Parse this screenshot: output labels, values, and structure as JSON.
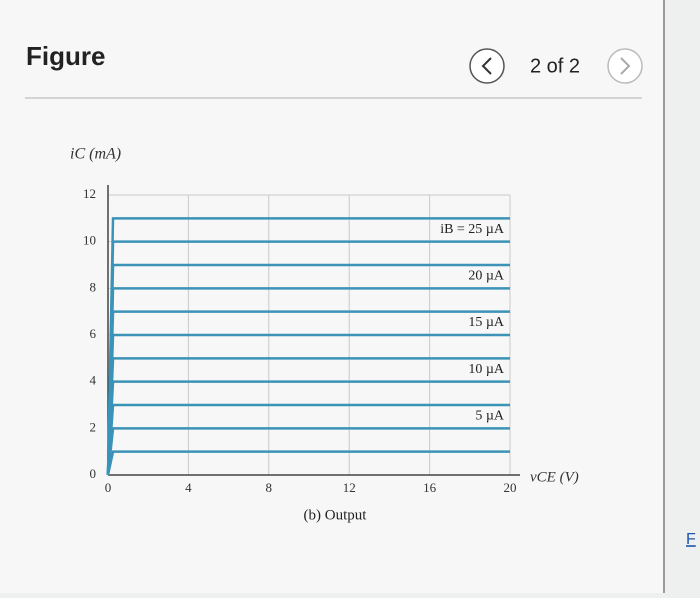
{
  "header": {
    "title": "Figure",
    "pager": "2 of 2"
  },
  "link": "F",
  "chart_data": {
    "type": "line",
    "y_label": "iC (mA)",
    "x_label": "vCE (V)",
    "caption": "(b) Output",
    "x": [
      0,
      0.25,
      20
    ],
    "color": "#3b93b8",
    "series": [
      {
        "values": [
          0,
          1,
          1
        ]
      },
      {
        "name": "5 µA",
        "values": [
          0,
          2,
          2
        ]
      },
      {
        "values": [
          0,
          3,
          3
        ]
      },
      {
        "name": "10 µA",
        "values": [
          0,
          4,
          4
        ]
      },
      {
        "values": [
          0,
          5,
          5
        ]
      },
      {
        "name": "15 µA",
        "values": [
          0,
          6,
          6
        ]
      },
      {
        "values": [
          0,
          7,
          7
        ]
      },
      {
        "name": "20 µA",
        "values": [
          0,
          8,
          8
        ]
      },
      {
        "values": [
          0,
          9,
          9
        ]
      },
      {
        "name": "iB = 25 µA",
        "values": [
          0,
          10,
          10
        ]
      },
      {
        "values": [
          0,
          11,
          11
        ]
      }
    ],
    "xlim": [
      0,
      20
    ],
    "xticks": [
      0,
      4,
      8,
      12,
      16,
      20
    ],
    "ylim": [
      0,
      12
    ],
    "yticks": [
      0,
      2,
      4,
      6,
      8,
      10,
      12
    ],
    "grid": true
  }
}
